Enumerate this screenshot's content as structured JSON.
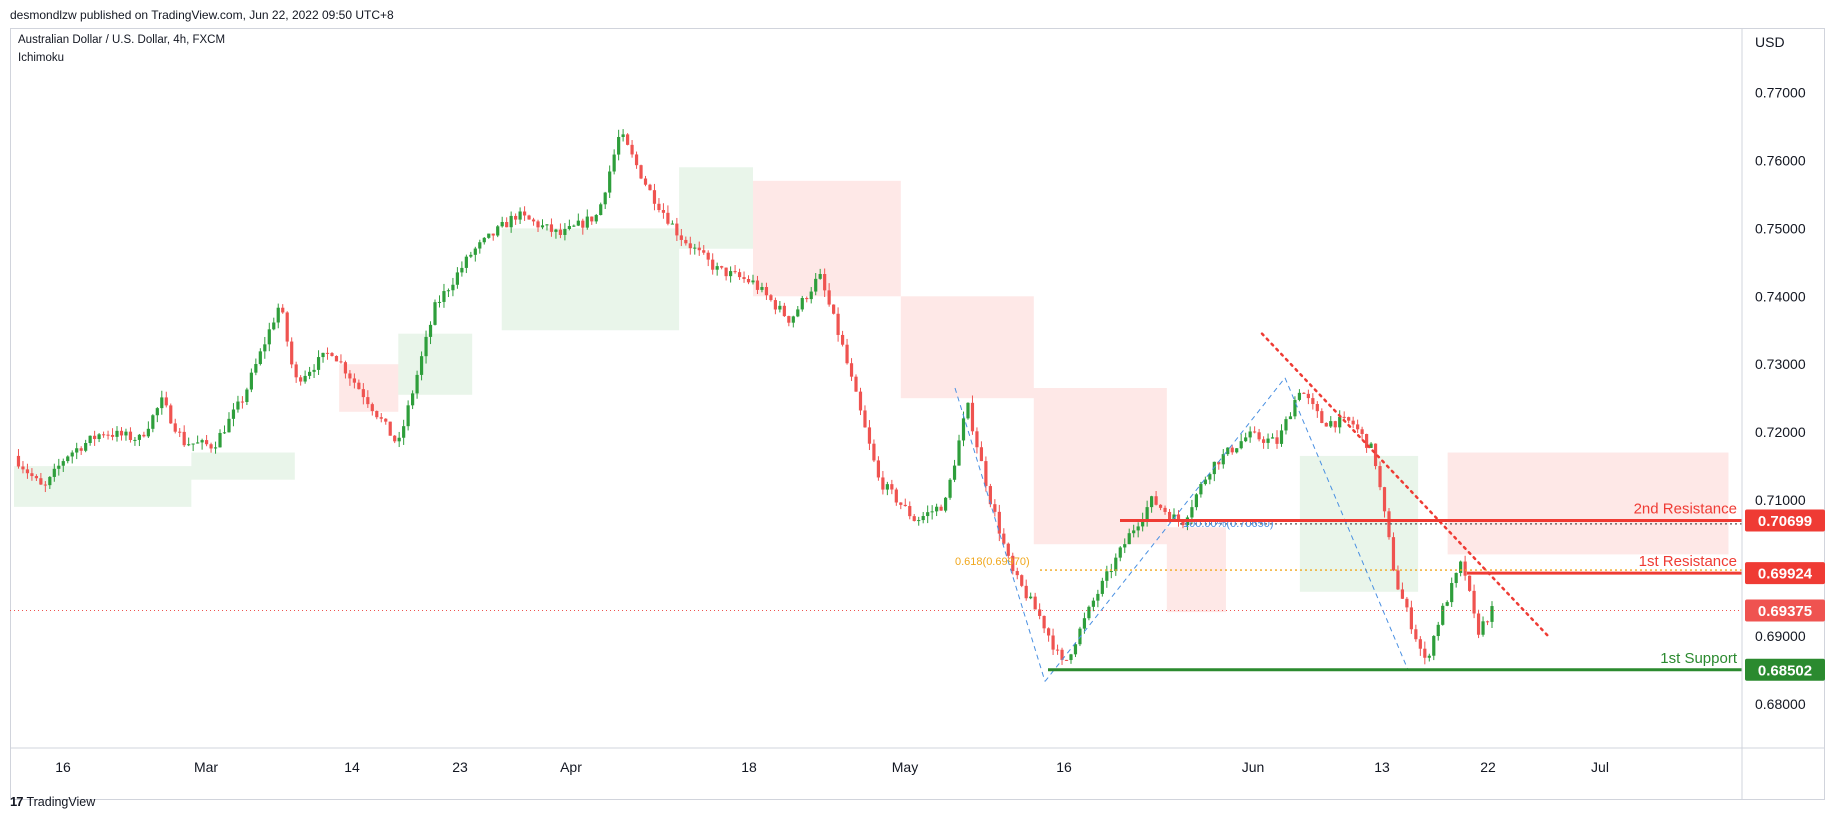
{
  "header": {
    "published_text": "desmondlzw published on TradingView.com, Jun 22, 2022 09:50 UTC+8",
    "symbol_line": "Australian Dollar / U.S. Dollar, 4h, FXCM",
    "indicator_line": "Ichimoku"
  },
  "footer": {
    "logo_text": "17",
    "brand": "TradingView"
  },
  "colors": {
    "up": "#2e9e3b",
    "down": "#ef5350",
    "resistance": "#ef3b34",
    "support": "#2b8a2f",
    "fib": "#f0a71c",
    "pattern": "#4a90e2"
  },
  "chart_data": {
    "type": "candlestick",
    "currency_label": "USD",
    "ylim": [
      0.6735,
      0.7795
    ],
    "y_ticks": [
      "0.77000",
      "0.76000",
      "0.75000",
      "0.74000",
      "0.73000",
      "0.72000",
      "0.71000",
      "0.69000",
      "0.68000"
    ],
    "x_ticks": [
      "16",
      "Mar",
      "14",
      "23",
      "Apr",
      "18",
      "May",
      "16",
      "Jun",
      "13",
      "22",
      "Jul"
    ],
    "price_path": [
      {
        "t": 0,
        "p": 0.7165
      },
      {
        "t": 0.02,
        "p": 0.7115
      },
      {
        "t": 0.035,
        "p": 0.7165
      },
      {
        "t": 0.06,
        "p": 0.72
      },
      {
        "t": 0.085,
        "p": 0.719
      },
      {
        "t": 0.1,
        "p": 0.7245
      },
      {
        "t": 0.115,
        "p": 0.7185
      },
      {
        "t": 0.135,
        "p": 0.718
      },
      {
        "t": 0.155,
        "p": 0.725
      },
      {
        "t": 0.18,
        "p": 0.739
      },
      {
        "t": 0.19,
        "p": 0.7275
      },
      {
        "t": 0.215,
        "p": 0.732
      },
      {
        "t": 0.24,
        "p": 0.7245
      },
      {
        "t": 0.26,
        "p": 0.718
      },
      {
        "t": 0.285,
        "p": 0.7385
      },
      {
        "t": 0.31,
        "p": 0.7465
      },
      {
        "t": 0.34,
        "p": 0.752
      },
      {
        "t": 0.37,
        "p": 0.749
      },
      {
        "t": 0.395,
        "p": 0.752
      },
      {
        "t": 0.41,
        "p": 0.764
      },
      {
        "t": 0.43,
        "p": 0.7555
      },
      {
        "t": 0.45,
        "p": 0.749
      },
      {
        "t": 0.475,
        "p": 0.744
      },
      {
        "t": 0.5,
        "p": 0.742
      },
      {
        "t": 0.525,
        "p": 0.7365
      },
      {
        "t": 0.545,
        "p": 0.743
      },
      {
        "t": 0.56,
        "p": 0.733
      },
      {
        "t": 0.585,
        "p": 0.713
      },
      {
        "t": 0.61,
        "p": 0.707
      },
      {
        "t": 0.63,
        "p": 0.7095
      },
      {
        "t": 0.645,
        "p": 0.724
      },
      {
        "t": 0.66,
        "p": 0.7105
      },
      {
        "t": 0.675,
        "p": 0.6995
      },
      {
        "t": 0.695,
        "p": 0.6925
      },
      {
        "t": 0.71,
        "p": 0.6855
      },
      {
        "t": 0.73,
        "p": 0.695
      },
      {
        "t": 0.755,
        "p": 0.705
      },
      {
        "t": 0.77,
        "p": 0.71
      },
      {
        "t": 0.79,
        "p": 0.7065
      },
      {
        "t": 0.81,
        "p": 0.715
      },
      {
        "t": 0.835,
        "p": 0.7195
      },
      {
        "t": 0.855,
        "p": 0.7185
      },
      {
        "t": 0.87,
        "p": 0.7265
      },
      {
        "t": 0.885,
        "p": 0.7215
      },
      {
        "t": 0.905,
        "p": 0.7215
      },
      {
        "t": 0.92,
        "p": 0.717
      },
      {
        "t": 0.935,
        "p": 0.698
      },
      {
        "t": 0.955,
        "p": 0.686
      },
      {
        "t": 0.965,
        "p": 0.693
      },
      {
        "t": 0.98,
        "p": 0.701
      },
      {
        "t": 0.99,
        "p": 0.6905
      },
      {
        "t": 1.0,
        "p": 0.6937
      }
    ],
    "cloud_bands": [
      {
        "t0": 0.0,
        "t1": 0.12,
        "top": 0.715,
        "bottom": 0.709,
        "color": "green"
      },
      {
        "t0": 0.12,
        "t1": 0.19,
        "top": 0.717,
        "bottom": 0.713,
        "color": "green"
      },
      {
        "t0": 0.22,
        "t1": 0.26,
        "top": 0.73,
        "bottom": 0.723,
        "color": "red"
      },
      {
        "t0": 0.26,
        "t1": 0.31,
        "top": 0.7345,
        "bottom": 0.7255,
        "color": "green"
      },
      {
        "t0": 0.33,
        "t1": 0.45,
        "top": 0.75,
        "bottom": 0.735,
        "color": "green"
      },
      {
        "t0": 0.45,
        "t1": 0.5,
        "top": 0.759,
        "bottom": 0.747,
        "color": "green"
      },
      {
        "t0": 0.5,
        "t1": 0.6,
        "top": 0.757,
        "bottom": 0.74,
        "color": "red"
      },
      {
        "t0": 0.6,
        "t1": 0.69,
        "top": 0.74,
        "bottom": 0.725,
        "color": "red"
      },
      {
        "t0": 0.69,
        "t1": 0.78,
        "top": 0.7265,
        "bottom": 0.7035,
        "color": "red"
      },
      {
        "t0": 0.78,
        "t1": 0.82,
        "top": 0.706,
        "bottom": 0.6935,
        "color": "red"
      },
      {
        "t0": 0.87,
        "t1": 0.95,
        "top": 0.7165,
        "bottom": 0.6965,
        "color": "green"
      },
      {
        "t0": 0.97,
        "t1": 1.16,
        "top": 0.717,
        "bottom": 0.702,
        "color": "red"
      }
    ],
    "levels": [
      {
        "label": "2nd Resistance",
        "value": "0.70699",
        "price": 0.70699,
        "color": "resistance"
      },
      {
        "label": "1st Resistance",
        "value": "0.69924",
        "price": 0.69924,
        "color": "resistance"
      },
      {
        "label": "1st Support",
        "value": "0.68502",
        "price": 0.68502,
        "color": "support"
      }
    ],
    "current_price": {
      "value": "0.69375",
      "price": 0.69375
    },
    "fib_labels": {
      "f100": "100.00%(0.70650)",
      "f618": "0.618(0.69970)"
    },
    "fib_levels": {
      "f100": 0.7065,
      "f618": 0.6997
    },
    "annotations": {
      "trendline": "dotted-red-downtrend",
      "pattern": "dashed-blue-abcd"
    }
  }
}
